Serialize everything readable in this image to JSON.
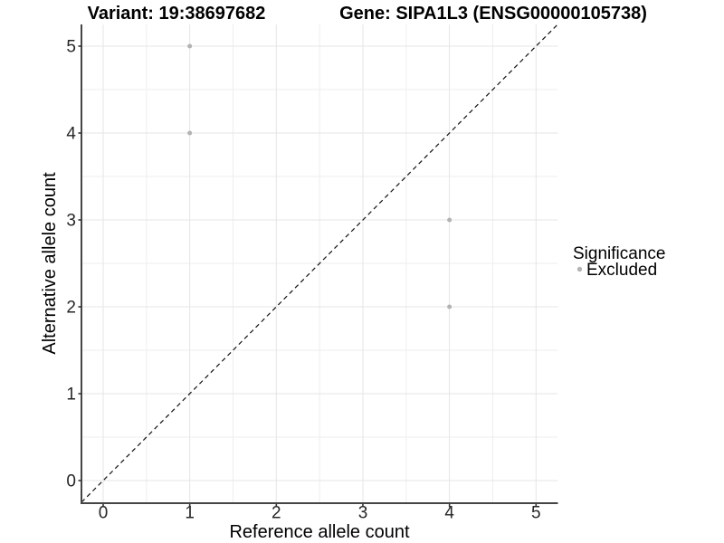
{
  "header": {
    "variant_title": "Variant: 19:38697682",
    "gene_title": "Gene: SIPA1L3 (ENSG00000105738)"
  },
  "chart_data": {
    "type": "scatter",
    "title": "Variant: 19:38697682   Gene: SIPA1L3 (ENSG00000105738)",
    "xlabel": "Reference allele count",
    "ylabel": "Alternative allele count",
    "xlim": [
      -0.25,
      5.25
    ],
    "ylim": [
      -0.25,
      5.25
    ],
    "x_ticks": [
      0,
      1,
      2,
      3,
      4,
      5
    ],
    "y_ticks": [
      0,
      1,
      2,
      3,
      4,
      5
    ],
    "minor_ticks": [
      0.5,
      1.5,
      2.5,
      3.5,
      4.5
    ],
    "grid": true,
    "legend_position": "right",
    "series": [
      {
        "name": "Excluded",
        "color": "#b3b3b3",
        "marker": "circle",
        "points": [
          [
            1,
            5
          ],
          [
            1,
            4
          ],
          [
            4,
            3
          ],
          [
            4,
            2
          ]
        ]
      }
    ],
    "reference_line": {
      "type": "identity",
      "equation": "y = x",
      "style": "dashed",
      "color": "#111111"
    }
  },
  "legend": {
    "title": "Significance",
    "items": [
      {
        "label": "Excluded",
        "color": "#b3b3b3",
        "marker": "circle"
      }
    ]
  },
  "colors": {
    "background": "#ffffff",
    "grid_major": "#e5e5e5",
    "grid_minor": "#eeeeee",
    "axis_line": "#454545",
    "tick_mark": "#333333",
    "tick_label": "#262626",
    "point": "#b3b3b3",
    "identity_line": "#111111"
  }
}
